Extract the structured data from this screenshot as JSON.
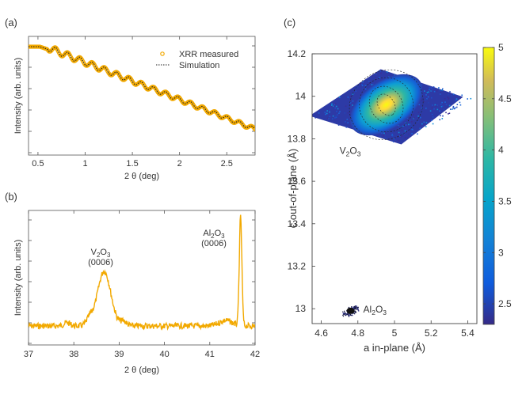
{
  "chart_data": [
    {
      "panel": "(a)",
      "type": "line",
      "xlabel": "2 θ (deg)",
      "ylabel": "Intensity (arb. units)",
      "xlim": [
        0.4,
        2.8
      ],
      "ylim": [
        0,
        1
      ],
      "xticks": [
        0.5,
        1,
        1.5,
        2,
        2.5
      ],
      "xtick_labels": [
        "0.5",
        "1",
        "1.5",
        "2",
        "2.5"
      ],
      "yscale": "log",
      "series": [
        {
          "name": "XRR measured",
          "marker": "circle",
          "color": "#f2a900"
        },
        {
          "name": "Simulation",
          "style": "dotted",
          "color": "#222222"
        }
      ],
      "critical_angle_deg": 0.6,
      "oscillation_period_deg": 0.13
    },
    {
      "panel": "(b)",
      "type": "line",
      "xlabel": "2 θ (deg)",
      "ylabel": "Intensity (arb. units)",
      "xlim": [
        37,
        42
      ],
      "xticks": [
        37,
        38,
        39,
        40,
        41,
        42
      ],
      "xtick_labels": [
        "37",
        "38",
        "39",
        "40",
        "41",
        "42"
      ],
      "color": "#f2a900",
      "peaks": [
        {
          "position": 38.67,
          "relative_height": 0.5,
          "width_deg": 0.25
        },
        {
          "position": 41.68,
          "relative_height": 1.0,
          "width_deg": 0.04
        }
      ],
      "annotations": [
        {
          "compound": "V2O3",
          "sub": "2",
          "sub2": "3",
          "base1": "V",
          "base2": "O",
          "reflection": "(0006)"
        },
        {
          "compound": "Al2O3",
          "sub": "2",
          "sub2": "3",
          "base1": "Al",
          "base2": "O",
          "reflection": "(0006)"
        }
      ]
    },
    {
      "panel": "(c)",
      "type": "heatmap",
      "xlabel": "a in-plane (Å)",
      "ylabel": "c out-of-plane (Å)",
      "xlim": [
        4.55,
        5.45
      ],
      "ylim": [
        12.93,
        14.2
      ],
      "xticks": [
        4.6,
        4.8,
        5,
        5.2,
        5.4
      ],
      "xtick_labels": [
        "4.6",
        "4.8",
        "5",
        "5.2",
        "5.4"
      ],
      "yticks": [
        13,
        13.2,
        13.4,
        13.6,
        13.8,
        14,
        14.2
      ],
      "ytick_labels": [
        "13",
        "13.2",
        "13.4",
        "13.6",
        "13.8",
        "14",
        "14.2"
      ],
      "colorbar": {
        "min": 2.3,
        "max": 5,
        "ticks": [
          2.5,
          3,
          3.5,
          4,
          4.5,
          5
        ],
        "tick_labels": [
          "2.5",
          "3",
          "3.5",
          "4",
          "4.5",
          "5"
        ]
      },
      "peaks": [
        {
          "label_base1": "V",
          "label_sub1": "2",
          "label_base2": "O",
          "label_sub2": "3",
          "a": 4.955,
          "c": 13.96,
          "max": 5.0
        },
        {
          "label_base1": "Al",
          "label_sub1": "2",
          "label_base2": "O",
          "label_sub2": "3",
          "a": 4.76,
          "c": 12.99,
          "max": 2.5
        }
      ]
    }
  ]
}
